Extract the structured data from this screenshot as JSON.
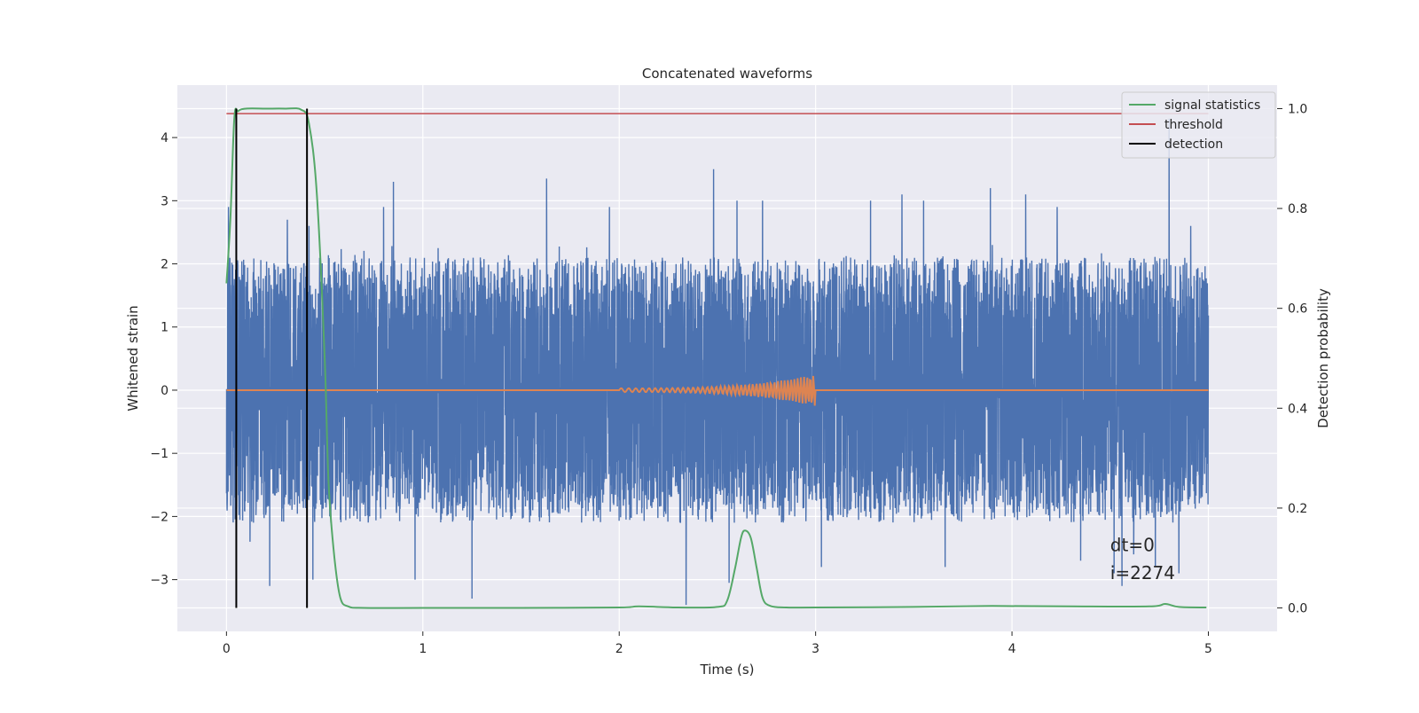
{
  "chart_data": {
    "type": "line",
    "title": "Concatenated waveforms",
    "xlabel": "Time (s)",
    "ylabel": "Whitened strain",
    "y2label": "Detection probability",
    "xlim": [
      -0.25,
      5.35
    ],
    "ylim": [
      -3.82,
      4.83
    ],
    "y2lim": [
      -0.047,
      1.047
    ],
    "xticks": [
      0,
      1,
      2,
      3,
      4,
      5
    ],
    "yticks": [
      -3,
      -2,
      -1,
      0,
      1,
      2,
      3,
      4
    ],
    "y2ticks": [
      0.0,
      0.2,
      0.4,
      0.6,
      0.8,
      1.0
    ],
    "xtick_labels": [
      "0",
      "1",
      "2",
      "3",
      "4",
      "5"
    ],
    "ytick_labels": [
      "−3",
      "−2",
      "−1",
      "0",
      "1",
      "2",
      "3",
      "4"
    ],
    "y2tick_labels": [
      "0.0",
      "0.2",
      "0.4",
      "0.6",
      "0.8",
      "1.0"
    ],
    "grid": true,
    "legend_position": "top-right",
    "legend": [
      {
        "label": "signal statistics",
        "color": "#55a868"
      },
      {
        "label": "threshold",
        "color": "#c44e52"
      },
      {
        "label": "detection",
        "color": "#000000"
      }
    ],
    "colors": {
      "noise": "#4c72b0",
      "waveform": "#dd8452",
      "statistic": "#55a868",
      "threshold": "#c44e52",
      "detection": "#000000",
      "axes_bg": "#eaeaf2",
      "grid": "#ffffff"
    },
    "series": [
      {
        "role": "noise",
        "axis": "left",
        "x_range": [
          0,
          5
        ],
        "amplitude_typical": [
          -1.9,
          2.3
        ],
        "spikes": [
          [
            0.01,
            2.9
          ],
          [
            0.12,
            -2.4
          ],
          [
            0.22,
            -3.1
          ],
          [
            0.31,
            2.7
          ],
          [
            0.42,
            2.6
          ],
          [
            0.44,
            -3.0
          ],
          [
            0.8,
            2.9
          ],
          [
            0.85,
            3.3
          ],
          [
            0.96,
            -3.0
          ],
          [
            1.25,
            -3.3
          ],
          [
            1.63,
            3.35
          ],
          [
            1.95,
            2.9
          ],
          [
            2.34,
            -3.4
          ],
          [
            2.48,
            3.5
          ],
          [
            2.56,
            -3.05
          ],
          [
            2.6,
            3.0
          ],
          [
            2.73,
            3.0
          ],
          [
            3.03,
            -2.8
          ],
          [
            3.28,
            3.0
          ],
          [
            3.44,
            3.1
          ],
          [
            3.55,
            3.0
          ],
          [
            3.66,
            -2.8
          ],
          [
            3.89,
            3.2
          ],
          [
            4.07,
            3.1
          ],
          [
            4.23,
            2.9
          ],
          [
            4.35,
            -2.7
          ],
          [
            4.52,
            -2.9
          ],
          [
            4.56,
            -3.1
          ],
          [
            4.62,
            -2.6
          ],
          [
            4.73,
            -2.8
          ],
          [
            4.8,
            4.3
          ],
          [
            4.85,
            -2.9
          ],
          [
            4.91,
            2.6
          ]
        ]
      },
      {
        "role": "injected waveform",
        "axis": "left",
        "x_range": [
          2.0,
          3.0
        ],
        "baseline": 0,
        "peak_amplitude": 0.25
      },
      {
        "name": "signal statistics",
        "axis": "right",
        "x": [
          0.0,
          0.02,
          0.04,
          0.06,
          0.1,
          0.2,
          0.3,
          0.38,
          0.42,
          0.46,
          0.5,
          0.52,
          0.55,
          0.58,
          0.62,
          0.7,
          1.0,
          1.5,
          2.0,
          2.1,
          2.3,
          2.5,
          2.55,
          2.59,
          2.62,
          2.64,
          2.67,
          2.7,
          2.73,
          2.77,
          2.85,
          3.0,
          3.5,
          3.9,
          4.3,
          4.7,
          4.78,
          4.85,
          4.99
        ],
        "y": [
          0.65,
          0.78,
          0.98,
          0.995,
          1.0,
          1.0,
          1.0,
          0.998,
          0.97,
          0.83,
          0.5,
          0.25,
          0.1,
          0.02,
          0.003,
          0.0,
          0.0,
          0.0,
          0.001,
          0.003,
          0.001,
          0.002,
          0.015,
          0.08,
          0.14,
          0.155,
          0.14,
          0.08,
          0.02,
          0.004,
          0.001,
          0.001,
          0.002,
          0.004,
          0.003,
          0.003,
          0.008,
          0.002,
          0.001
        ]
      },
      {
        "name": "threshold",
        "axis": "right",
        "x": [
          0,
          5
        ],
        "y": [
          0.99,
          0.99
        ]
      },
      {
        "name": "detection",
        "axis": "right",
        "type": "vlines",
        "x": [
          0.05,
          0.41
        ],
        "y_range": [
          0.0,
          1.0
        ]
      }
    ],
    "annotations": [
      {
        "text": "dt=0",
        "x": 4.5,
        "y": -2.55
      },
      {
        "text": "i=2274",
        "x": 4.5,
        "y": -2.99
      }
    ]
  }
}
